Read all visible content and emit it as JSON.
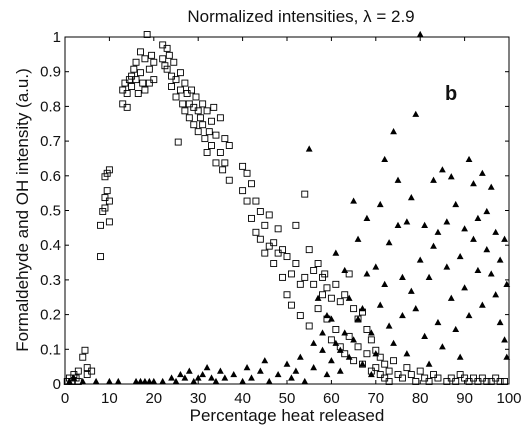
{
  "chart_data": {
    "type": "scatter",
    "title_prefix": "Normalized intensities, ",
    "title_symbol": "λ",
    "title_suffix": " = 2.9",
    "xlabel": "Percentage heat released",
    "ylabel": "Formaldehyde and OH intensity (a.u.)",
    "panel_label": "b",
    "xlim": [
      0,
      100
    ],
    "ylim": [
      0,
      1
    ],
    "x_ticks": [
      "0",
      "10",
      "20",
      "30",
      "40",
      "50",
      "60",
      "70",
      "80",
      "90",
      "100"
    ],
    "y_ticks": [
      "0",
      "0.1",
      "0.2",
      "0.3",
      "0.4",
      "0.5",
      "0.6",
      "0.7",
      "0.8",
      "0.9",
      "1"
    ],
    "grid": false,
    "legend": "none",
    "series": [
      {
        "marker": "open-square",
        "color": "#000000",
        "points": [
          [
            0.5,
            0.0
          ],
          [
            1,
            0.01
          ],
          [
            1.5,
            0.0
          ],
          [
            2,
            0.02
          ],
          [
            2.5,
            0.01
          ],
          [
            3,
            0.03
          ],
          [
            3,
            0.0
          ],
          [
            4,
            0.07
          ],
          [
            4.5,
            0.09
          ],
          [
            5,
            0.04
          ],
          [
            5,
            0.02
          ],
          [
            6,
            0.03
          ],
          [
            8,
            0.36
          ],
          [
            8,
            0.45
          ],
          [
            8.5,
            0.49
          ],
          [
            9,
            0.5
          ],
          [
            9,
            0.53
          ],
          [
            9,
            0.59
          ],
          [
            9.5,
            0.55
          ],
          [
            9.5,
            0.6
          ],
          [
            10,
            0.61
          ],
          [
            10,
            0.46
          ],
          [
            10,
            0.52
          ],
          [
            13,
            0.8
          ],
          [
            13,
            0.84
          ],
          [
            13.5,
            0.86
          ],
          [
            14,
            0.79
          ],
          [
            14,
            0.83
          ],
          [
            14.5,
            0.87
          ],
          [
            15,
            0.88
          ],
          [
            15,
            0.85
          ],
          [
            15.5,
            0.9
          ],
          [
            16,
            0.92
          ],
          [
            16,
            0.87
          ],
          [
            16.5,
            0.83
          ],
          [
            17,
            0.95
          ],
          [
            17,
            0.89
          ],
          [
            17.5,
            0.86
          ],
          [
            18,
            0.93
          ],
          [
            18,
            0.84
          ],
          [
            18.5,
            1.0
          ],
          [
            19,
            0.9
          ],
          [
            19,
            0.86
          ],
          [
            19.5,
            0.94
          ],
          [
            20,
            0.92
          ],
          [
            20,
            0.87
          ],
          [
            22,
            0.97
          ],
          [
            22,
            0.93
          ],
          [
            22.5,
            0.91
          ],
          [
            23,
            0.96
          ],
          [
            23,
            0.9
          ],
          [
            23.5,
            0.94
          ],
          [
            24,
            0.88
          ],
          [
            24,
            0.85
          ],
          [
            24.5,
            0.92
          ],
          [
            25,
            0.87
          ],
          [
            25,
            0.82
          ],
          [
            25.5,
            0.69
          ],
          [
            26,
            0.89
          ],
          [
            26,
            0.84
          ],
          [
            26.5,
            0.8
          ],
          [
            27,
            0.86
          ],
          [
            27,
            0.78
          ],
          [
            27.5,
            0.83
          ],
          [
            28,
            0.8
          ],
          [
            28,
            0.76
          ],
          [
            28.5,
            0.84
          ],
          [
            29,
            0.79
          ],
          [
            29,
            0.74
          ],
          [
            29.5,
            0.82
          ],
          [
            30,
            0.78
          ],
          [
            30,
            0.72
          ],
          [
            30.5,
            0.76
          ],
          [
            31,
            0.8
          ],
          [
            31,
            0.74
          ],
          [
            31.5,
            0.7
          ],
          [
            32,
            0.78
          ],
          [
            32,
            0.66
          ],
          [
            32.5,
            0.72
          ],
          [
            33,
            0.75
          ],
          [
            33,
            0.68
          ],
          [
            33.5,
            0.79
          ],
          [
            34,
            0.71
          ],
          [
            34,
            0.63
          ],
          [
            35,
            0.76
          ],
          [
            35,
            0.66
          ],
          [
            35.5,
            0.61
          ],
          [
            36,
            0.7
          ],
          [
            36,
            0.63
          ],
          [
            37,
            0.68
          ],
          [
            37,
            0.58
          ],
          [
            40,
            0.62
          ],
          [
            40,
            0.55
          ],
          [
            41,
            0.6
          ],
          [
            41,
            0.52
          ],
          [
            42,
            0.57
          ],
          [
            42,
            0.47
          ],
          [
            43,
            0.52
          ],
          [
            43,
            0.43
          ],
          [
            44,
            0.49
          ],
          [
            44,
            0.41
          ],
          [
            45,
            0.45
          ],
          [
            45,
            0.37
          ],
          [
            46,
            0.48
          ],
          [
            46,
            0.39
          ],
          [
            47,
            0.4
          ],
          [
            47,
            0.34
          ],
          [
            48,
            0.44
          ],
          [
            48,
            0.37
          ],
          [
            49,
            0.38
          ],
          [
            49,
            0.3
          ],
          [
            50,
            0.36
          ],
          [
            50,
            0.25
          ],
          [
            51,
            0.31
          ],
          [
            51,
            0.22
          ],
          [
            52,
            0.45
          ],
          [
            52,
            0.34
          ],
          [
            53,
            0.28
          ],
          [
            53,
            0.19
          ],
          [
            54,
            0.54
          ],
          [
            54,
            0.3
          ],
          [
            55,
            0.38
          ],
          [
            55,
            0.16
          ],
          [
            56,
            0.32
          ],
          [
            56,
            0.28
          ],
          [
            57,
            0.34
          ],
          [
            57,
            0.21
          ],
          [
            58,
            0.3
          ],
          [
            58,
            0.25
          ],
          [
            58.5,
            0.31
          ],
          [
            59,
            0.27
          ],
          [
            59,
            0.18
          ],
          [
            60,
            0.24
          ],
          [
            60,
            0.12
          ],
          [
            61,
            0.28
          ],
          [
            61,
            0.15
          ],
          [
            62,
            0.23
          ],
          [
            62,
            0.1
          ],
          [
            63,
            0.25
          ],
          [
            63,
            0.08
          ],
          [
            64,
            0.31
          ],
          [
            64,
            0.13
          ],
          [
            65,
            0.21
          ],
          [
            65,
            0.06
          ],
          [
            66,
            0.18
          ],
          [
            66,
            0.1
          ],
          [
            67,
            0.2
          ],
          [
            67,
            0.05
          ],
          [
            68,
            0.15
          ],
          [
            68,
            0.08
          ],
          [
            69,
            0.12
          ],
          [
            69,
            0.03
          ],
          [
            70,
            0.09
          ],
          [
            70,
            0.04
          ],
          [
            71,
            0.07
          ],
          [
            71,
            0.02
          ],
          [
            72,
            0.05
          ],
          [
            72,
            0.01
          ],
          [
            73,
            0.03
          ],
          [
            73,
            0.0
          ],
          [
            74,
            0.06
          ],
          [
            75,
            0.02
          ],
          [
            76,
            0.01
          ],
          [
            77,
            0.04
          ],
          [
            78,
            0.02
          ],
          [
            79,
            0.0
          ],
          [
            80,
            0.03
          ],
          [
            81,
            0.01
          ],
          [
            82,
            0.0
          ],
          [
            83,
            0.02
          ],
          [
            84,
            0.01
          ],
          [
            86,
            0.0
          ],
          [
            87,
            0.01
          ],
          [
            88,
            0.0
          ],
          [
            89,
            0.02
          ],
          [
            90,
            0.01
          ],
          [
            91,
            0.0
          ],
          [
            92,
            0.01
          ],
          [
            93,
            0.0
          ],
          [
            94,
            0.01
          ],
          [
            95,
            0.0
          ],
          [
            96,
            0.0
          ],
          [
            97,
            0.01
          ],
          [
            98,
            0.0
          ],
          [
            99,
            0.0
          ]
        ]
      },
      {
        "marker": "filled-triangle",
        "color": "#000000",
        "points": [
          [
            1,
            0.0
          ],
          [
            2,
            0.01
          ],
          [
            4,
            0.0
          ],
          [
            7,
            0.0
          ],
          [
            10,
            0.0
          ],
          [
            12,
            0.0
          ],
          [
            16,
            0.0
          ],
          [
            17,
            0.0
          ],
          [
            18,
            0.0
          ],
          [
            19,
            0.0
          ],
          [
            20,
            0.0
          ],
          [
            22,
            0.0
          ],
          [
            24,
            0.01
          ],
          [
            25,
            0.0
          ],
          [
            26,
            0.02
          ],
          [
            27,
            0.01
          ],
          [
            28,
            0.03
          ],
          [
            29,
            0.0
          ],
          [
            30,
            0.01
          ],
          [
            31,
            0.02
          ],
          [
            32,
            0.04
          ],
          [
            33,
            0.01
          ],
          [
            34,
            0.0
          ],
          [
            35,
            0.03
          ],
          [
            36,
            0.01
          ],
          [
            38,
            0.02
          ],
          [
            40,
            0.0
          ],
          [
            41,
            0.04
          ],
          [
            42,
            0.01
          ],
          [
            44,
            0.03
          ],
          [
            45,
            0.06
          ],
          [
            46,
            0.0
          ],
          [
            48,
            0.02
          ],
          [
            50,
            0.05
          ],
          [
            51,
            0.01
          ],
          [
            52,
            0.03
          ],
          [
            53,
            0.07
          ],
          [
            54,
            0.0
          ],
          [
            55,
            0.67
          ],
          [
            56,
            0.11
          ],
          [
            56,
            0.04
          ],
          [
            57,
            0.24
          ],
          [
            58,
            0.09
          ],
          [
            58,
            0.14
          ],
          [
            59,
            0.19
          ],
          [
            59,
            0.02
          ],
          [
            60,
            0.18
          ],
          [
            60,
            0.06
          ],
          [
            61,
            0.37
          ],
          [
            61,
            0.11
          ],
          [
            62,
            0.09
          ],
          [
            62,
            0.03
          ],
          [
            63,
            0.32
          ],
          [
            63,
            0.14
          ],
          [
            64,
            0.24
          ],
          [
            64,
            0.07
          ],
          [
            65,
            0.52
          ],
          [
            65,
            0.12
          ],
          [
            66,
            0.41
          ],
          [
            66,
            0.18
          ],
          [
            67,
            0.21
          ],
          [
            67,
            0.05
          ],
          [
            68,
            0.47
          ],
          [
            68,
            0.31
          ],
          [
            69,
            0.14
          ],
          [
            69,
            0.02
          ],
          [
            70,
            0.33
          ],
          [
            70,
            0.08
          ],
          [
            71,
            0.51
          ],
          [
            71,
            0.22
          ],
          [
            72,
            0.64
          ],
          [
            72,
            0.28
          ],
          [
            73,
            0.4
          ],
          [
            73,
            0.16
          ],
          [
            74,
            0.72
          ],
          [
            74,
            0.11
          ],
          [
            75,
            0.45
          ],
          [
            75,
            0.58
          ],
          [
            76,
            0.3
          ],
          [
            76,
            0.19
          ],
          [
            77,
            0.46
          ],
          [
            77,
            0.08
          ],
          [
            78,
            0.26
          ],
          [
            78,
            0.53
          ],
          [
            79,
            0.77
          ],
          [
            79,
            0.21
          ],
          [
            80,
            1.0
          ],
          [
            80,
            0.35
          ],
          [
            81,
            0.45
          ],
          [
            81,
            0.13
          ],
          [
            82,
            0.3
          ],
          [
            82,
            0.05
          ],
          [
            83,
            0.58
          ],
          [
            83,
            0.39
          ],
          [
            84,
            0.43
          ],
          [
            84,
            0.17
          ],
          [
            85,
            0.61
          ],
          [
            85,
            0.1
          ],
          [
            86,
            0.46
          ],
          [
            86,
            0.33
          ],
          [
            87,
            0.59
          ],
          [
            87,
            0.24
          ],
          [
            88,
            0.51
          ],
          [
            88,
            0.15
          ],
          [
            89,
            0.36
          ],
          [
            89,
            0.07
          ],
          [
            90,
            0.44
          ],
          [
            90,
            0.27
          ],
          [
            91,
            0.64
          ],
          [
            91,
            0.19
          ],
          [
            92,
            0.57
          ],
          [
            92,
            0.41
          ],
          [
            93,
            0.47
          ],
          [
            93,
            0.32
          ],
          [
            94,
            0.6
          ],
          [
            94,
            0.22
          ],
          [
            95,
            0.49
          ],
          [
            95,
            0.38
          ],
          [
            96,
            0.56
          ],
          [
            96,
            0.31
          ],
          [
            97,
            0.43
          ],
          [
            97,
            0.25
          ],
          [
            98,
            0.35
          ],
          [
            98,
            0.17
          ],
          [
            99,
            0.41
          ],
          [
            99,
            0.12
          ],
          [
            99.5,
            0.28
          ],
          [
            99.5,
            0.07
          ]
        ]
      }
    ]
  }
}
